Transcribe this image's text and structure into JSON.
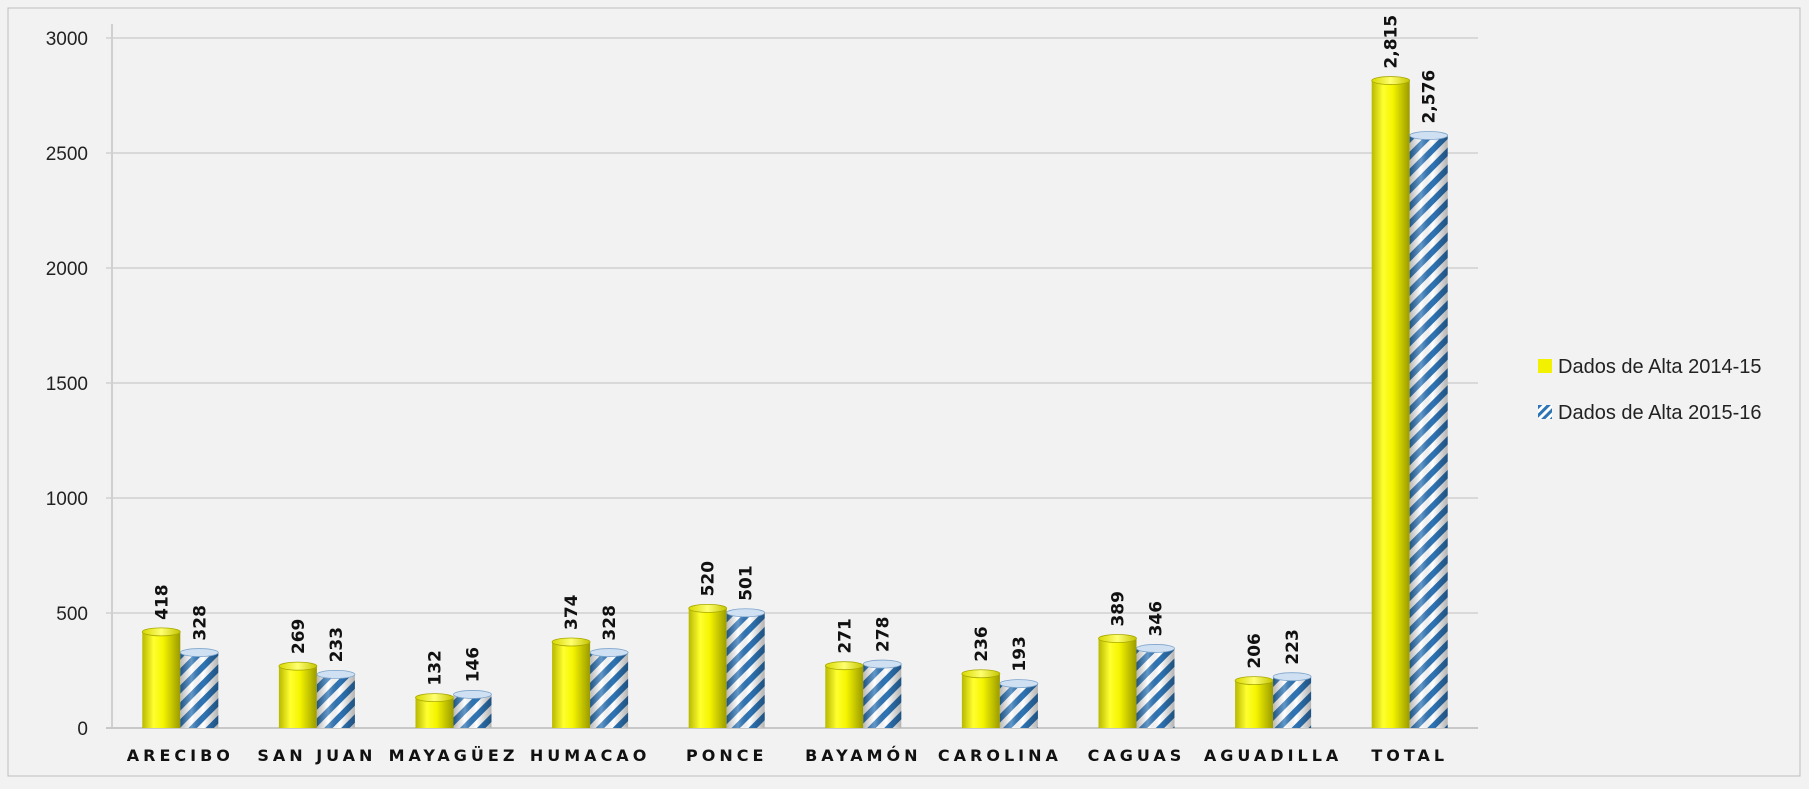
{
  "chart_data": {
    "type": "bar",
    "categories": [
      "ARECIBO",
      "SAN JUAN",
      "MAYAGÜEZ",
      "HUMACAO",
      "PONCE",
      "BAYAMÓN",
      "CAROLINA",
      "CAGUAS",
      "AGUADILLA",
      "TOTAL"
    ],
    "series": [
      {
        "name": "Dados de Alta 2014-15",
        "values": [
          418,
          269,
          132,
          374,
          520,
          271,
          236,
          389,
          206,
          2815
        ],
        "labels": [
          "418",
          "269",
          "132",
          "374",
          "520",
          "271",
          "236",
          "389",
          "206",
          "2,815"
        ],
        "color": "#f2f200",
        "pattern": "solid"
      },
      {
        "name": "Dados de Alta 2015-16",
        "values": [
          328,
          233,
          146,
          328,
          501,
          278,
          193,
          346,
          223,
          2576
        ],
        "labels": [
          "328",
          "233",
          "146",
          "328",
          "501",
          "278",
          "193",
          "346",
          "223",
          "2,576"
        ],
        "color": "#2e75b6",
        "pattern": "diagonal-stripes"
      }
    ],
    "yticks": [
      "0",
      "500",
      "1000",
      "1500",
      "2000",
      "2500",
      "3000"
    ],
    "ylim": [
      0,
      3000
    ],
    "grid": true,
    "legend_position": "right",
    "title": "",
    "xlabel": "",
    "ylabel": ""
  }
}
